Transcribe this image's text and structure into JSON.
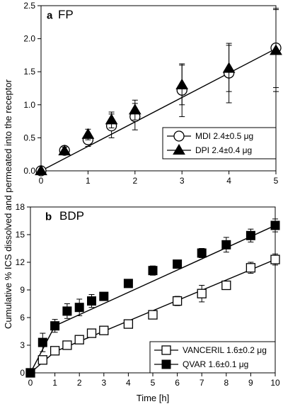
{
  "chart_data": [
    {
      "type": "line",
      "panel_letter": "a",
      "title": "FP",
      "xlim": [
        0,
        5
      ],
      "ylim": [
        0,
        2.5
      ],
      "xticks": [
        "0",
        "1",
        "2",
        "3",
        "4",
        "5"
      ],
      "yticks": [
        "0.0",
        "0.5",
        "1.0",
        "1.5",
        "2.0",
        "2.5"
      ],
      "legend_placement": "bottom-right",
      "series": [
        {
          "name": "MDI 2.4±0.5 μg",
          "marker": "open-circle",
          "x": [
            0,
            0.5,
            1,
            1.5,
            2,
            3,
            4,
            5
          ],
          "y": [
            0,
            0.31,
            0.47,
            0.68,
            0.82,
            1.22,
            1.48,
            1.86
          ],
          "err": [
            0,
            0.05,
            0.1,
            0.18,
            0.2,
            0.4,
            0.45,
            0.6
          ]
        },
        {
          "name": "DPI 2.4±0.4 μg",
          "marker": "filled-triangle",
          "x": [
            0,
            0.5,
            1,
            1.5,
            2,
            3,
            4,
            5
          ],
          "y": [
            0,
            0.3,
            0.55,
            0.77,
            0.92,
            1.3,
            1.55,
            1.82
          ],
          "err": [
            0,
            0.06,
            0.08,
            0.12,
            0.15,
            0.3,
            0.35,
            0.62
          ]
        }
      ],
      "fit_line": {
        "x": [
          0,
          5
        ],
        "y": [
          0,
          1.85
        ]
      }
    },
    {
      "type": "line",
      "panel_letter": "b",
      "title": "BDP",
      "xlabel": "Time [h]",
      "xlim": [
        0,
        10
      ],
      "ylim": [
        0,
        18
      ],
      "xticks": [
        "0",
        "1",
        "2",
        "3",
        "4",
        "5",
        "6",
        "7",
        "8",
        "9",
        "10"
      ],
      "yticks": [
        "0",
        "3",
        "6",
        "9",
        "12",
        "15",
        "18"
      ],
      "legend_placement": "bottom-right",
      "series": [
        {
          "name": "VANCERIL 1.6±0.2 μg",
          "marker": "open-square",
          "x": [
            0,
            0.5,
            1,
            1.5,
            2,
            2.5,
            3,
            4,
            5,
            6,
            7,
            8,
            9,
            10
          ],
          "y": [
            0,
            1.4,
            2.4,
            3.0,
            3.6,
            4.3,
            4.6,
            5.3,
            6.3,
            7.8,
            8.6,
            9.5,
            11.4,
            12.3
          ],
          "err": [
            0,
            0.3,
            0.3,
            0.35,
            0.35,
            0.4,
            0.4,
            0.3,
            0.4,
            0.5,
            0.9,
            0.4,
            0.6,
            0.6
          ]
        },
        {
          "name": "QVAR 1.6±0.1 μg",
          "marker": "filled-square",
          "x": [
            0,
            0.5,
            1,
            1.5,
            2,
            2.5,
            3,
            4,
            5,
            6,
            7,
            8,
            9,
            10
          ],
          "y": [
            0,
            3.3,
            5.1,
            6.7,
            7.1,
            7.8,
            8.3,
            9.7,
            11.1,
            11.8,
            13.0,
            13.9,
            14.9,
            16.0
          ],
          "err": [
            0,
            1.0,
            0.7,
            0.8,
            0.9,
            0.7,
            0.3,
            0.4,
            0.5,
            0.3,
            0.5,
            0.8,
            0.7,
            0.7
          ]
        }
      ],
      "fit_lines": [
        {
          "series": "VANCERIL 1.6±0.2 μg",
          "x": [
            0,
            1,
            10
          ],
          "y": [
            0,
            2.3,
            12.3
          ]
        },
        {
          "series": "QVAR 1.6±0.1 μg",
          "x": [
            0,
            1,
            10
          ],
          "y": [
            0,
            5.1,
            16.0
          ]
        }
      ]
    }
  ],
  "shared_ylabel": "Cumulative % ICS dissolved and permeated into the receptor"
}
